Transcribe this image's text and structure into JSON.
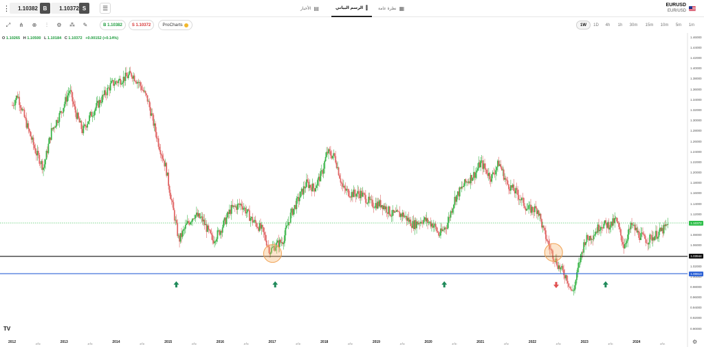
{
  "header": {
    "sell_price": "1.10382",
    "buy_price": "1.10372",
    "sell_label": "B",
    "buy_label": "S",
    "tabs": [
      {
        "label": "الأخبار",
        "icon": "news-icon",
        "active": false
      },
      {
        "label": "الرسم البياني",
        "icon": "chart-icon",
        "active": true
      },
      {
        "label": "نظرة عامة",
        "icon": "grid-icon",
        "active": false
      }
    ],
    "symbol": "EURUSD",
    "symbol_sub": "EUR/USD"
  },
  "toolbar": {
    "buy_pill": "B 1.10382",
    "sell_pill": "S 1.10372",
    "procharts": "ProCharts",
    "timeframes": [
      "1W",
      "1D",
      "4h",
      "1h",
      "30m",
      "15m",
      "10m",
      "5m",
      "1m"
    ],
    "active_timeframe": "1W"
  },
  "ohlc": {
    "o_label": "O",
    "o": "1.10265",
    "h_label": "H",
    "h": "1.10500",
    "l_label": "L",
    "l": "1.10184",
    "c_label": "C",
    "c": "1.10372",
    "change": "+0.00152 (+0.14%)"
  },
  "chart_data": {
    "type": "candlestick",
    "x_years": [
      "2012",
      "2013",
      "2014",
      "2015",
      "2016",
      "2017",
      "2018",
      "2019",
      "2020",
      "2021",
      "2022",
      "2023",
      "2024"
    ],
    "x_mid_label": "يوليو",
    "y_ticks": [
      "1.46000",
      "1.44000",
      "1.42000",
      "1.40000",
      "1.38000",
      "1.36000",
      "1.34000",
      "1.32000",
      "1.30000",
      "1.28000",
      "1.26000",
      "1.24000",
      "1.22000",
      "1.20000",
      "1.18000",
      "1.16000",
      "1.14000",
      "1.12000",
      "1.10000",
      "1.08000",
      "1.06000",
      "1.04000",
      "1.02000",
      "1.00000",
      "0.98000",
      "0.96000",
      "0.94000",
      "0.92000",
      "0.90000"
    ],
    "ylim": [
      0.885,
      1.465
    ],
    "price_anchors": [
      [
        2012.0,
        1.33
      ],
      [
        2012.1,
        1.35
      ],
      [
        2012.25,
        1.3
      ],
      [
        2012.45,
        1.24
      ],
      [
        2012.6,
        1.21
      ],
      [
        2012.75,
        1.28
      ],
      [
        2012.95,
        1.32
      ],
      [
        2013.1,
        1.36
      ],
      [
        2013.2,
        1.32
      ],
      [
        2013.35,
        1.28
      ],
      [
        2013.5,
        1.31
      ],
      [
        2013.7,
        1.34
      ],
      [
        2013.9,
        1.37
      ],
      [
        2014.1,
        1.38
      ],
      [
        2014.3,
        1.39
      ],
      [
        2014.45,
        1.37
      ],
      [
        2014.6,
        1.34
      ],
      [
        2014.8,
        1.26
      ],
      [
        2014.95,
        1.21
      ],
      [
        2015.05,
        1.15
      ],
      [
        2015.2,
        1.07
      ],
      [
        2015.35,
        1.1
      ],
      [
        2015.5,
        1.12
      ],
      [
        2015.65,
        1.11
      ],
      [
        2015.85,
        1.07
      ],
      [
        2016.0,
        1.09
      ],
      [
        2016.2,
        1.13
      ],
      [
        2016.4,
        1.14
      ],
      [
        2016.6,
        1.11
      ],
      [
        2016.8,
        1.09
      ],
      [
        2016.95,
        1.05
      ],
      [
        2017.05,
        1.06
      ],
      [
        2017.2,
        1.07
      ],
      [
        2017.35,
        1.12
      ],
      [
        2017.5,
        1.15
      ],
      [
        2017.65,
        1.18
      ],
      [
        2017.8,
        1.17
      ],
      [
        2017.95,
        1.2
      ],
      [
        2018.05,
        1.24
      ],
      [
        2018.2,
        1.23
      ],
      [
        2018.35,
        1.17
      ],
      [
        2018.5,
        1.16
      ],
      [
        2018.7,
        1.16
      ],
      [
        2018.9,
        1.14
      ],
      [
        2019.1,
        1.14
      ],
      [
        2019.3,
        1.12
      ],
      [
        2019.5,
        1.12
      ],
      [
        2019.7,
        1.1
      ],
      [
        2019.9,
        1.11
      ],
      [
        2020.1,
        1.1
      ],
      [
        2020.2,
        1.08
      ],
      [
        2020.35,
        1.1
      ],
      [
        2020.5,
        1.15
      ],
      [
        2020.7,
        1.18
      ],
      [
        2020.9,
        1.2
      ],
      [
        2021.0,
        1.22
      ],
      [
        2021.2,
        1.19
      ],
      [
        2021.35,
        1.22
      ],
      [
        2021.5,
        1.18
      ],
      [
        2021.7,
        1.16
      ],
      [
        2021.9,
        1.13
      ],
      [
        2022.1,
        1.13
      ],
      [
        2022.2,
        1.09
      ],
      [
        2022.35,
        1.05
      ],
      [
        2022.5,
        1.02
      ],
      [
        2022.65,
        1.0
      ],
      [
        2022.75,
        0.97
      ],
      [
        2022.8,
        0.98
      ],
      [
        2022.9,
        1.03
      ],
      [
        2023.0,
        1.07
      ],
      [
        2023.15,
        1.08
      ],
      [
        2023.3,
        1.1
      ],
      [
        2023.5,
        1.1
      ],
      [
        2023.6,
        1.11
      ],
      [
        2023.75,
        1.06
      ],
      [
        2023.9,
        1.1
      ],
      [
        2024.05,
        1.08
      ],
      [
        2024.2,
        1.07
      ],
      [
        2024.35,
        1.08
      ],
      [
        2024.5,
        1.09
      ],
      [
        2024.6,
        1.1
      ]
    ],
    "h_lines": [
      {
        "name": "support-black",
        "price": 1.03944,
        "label": "1.03944",
        "color": "#111111"
      },
      {
        "name": "support-blue",
        "price": 1.00613,
        "label": "1.00613",
        "color": "#2e63d6"
      }
    ],
    "current_price": {
      "price": 1.10372,
      "label": "1.10372",
      "color": "#2fbf4a"
    },
    "highlights": [
      {
        "x": 2017.0,
        "price": 1.045,
        "color": "#f0a050"
      },
      {
        "x": 2022.4,
        "price": 1.047,
        "color": "#f0a050"
      }
    ],
    "arrows": [
      {
        "x": 2015.15,
        "price": 0.985,
        "dir": "up",
        "color": "#1f8a5a"
      },
      {
        "x": 2017.05,
        "price": 0.985,
        "dir": "up",
        "color": "#1f8a5a"
      },
      {
        "x": 2020.3,
        "price": 0.985,
        "dir": "up",
        "color": "#1f8a5a"
      },
      {
        "x": 2022.45,
        "price": 0.985,
        "dir": "down",
        "color": "#e05050"
      },
      {
        "x": 2023.4,
        "price": 0.985,
        "dir": "up",
        "color": "#1f8a5a"
      }
    ],
    "up_color": "#3bb54a",
    "down_color": "#e06666"
  },
  "footer": {
    "logo": "TV"
  }
}
